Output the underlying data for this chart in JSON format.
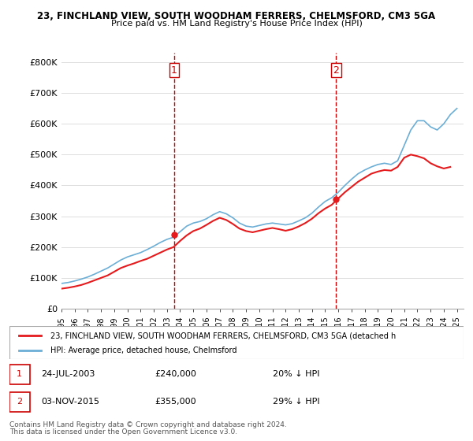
{
  "title1": "23, FINCHLAND VIEW, SOUTH WOODHAM FERRERS, CHELMSFORD, CM3 5GA",
  "title2": "Price paid vs. HM Land Registry's House Price Index (HPI)",
  "ylabel": "",
  "xlim_start": 1995.0,
  "xlim_end": 2025.5,
  "ylim_min": 0,
  "ylim_max": 830000,
  "yticks": [
    0,
    100000,
    200000,
    300000,
    400000,
    500000,
    600000,
    700000,
    800000
  ],
  "ytick_labels": [
    "£0",
    "£100K",
    "£200K",
    "£300K",
    "£400K",
    "£500K",
    "£600K",
    "£700K",
    "£800K"
  ],
  "xticks": [
    1995,
    1996,
    1997,
    1998,
    1999,
    2000,
    2001,
    2002,
    2003,
    2004,
    2005,
    2006,
    2007,
    2008,
    2009,
    2010,
    2011,
    2012,
    2013,
    2014,
    2015,
    2016,
    2017,
    2018,
    2019,
    2020,
    2021,
    2022,
    2023,
    2024,
    2025
  ],
  "hpi_color": "#6baed6",
  "price_color": "#e41a1c",
  "vline_color": "#cc0000",
  "vline1_x": 2003.55,
  "vline2_x": 2015.84,
  "sale1_label": "1",
  "sale2_label": "2",
  "sale1_date": "24-JUL-2003",
  "sale1_price": "£240,000",
  "sale1_pct": "20% ↓ HPI",
  "sale2_date": "03-NOV-2015",
  "sale2_price": "£355,000",
  "sale2_pct": "29% ↓ HPI",
  "legend_line1": "23, FINCHLAND VIEW, SOUTH WOODHAM FERRERS, CHELMSFORD, CM3 5GA (detached h",
  "legend_line2": "HPI: Average price, detached house, Chelmsford",
  "footer1": "Contains HM Land Registry data © Crown copyright and database right 2024.",
  "footer2": "This data is licensed under the Open Government Licence v3.0.",
  "hpi_x": [
    1995,
    1995.5,
    1996,
    1996.5,
    1997,
    1997.5,
    1998,
    1998.5,
    1999,
    1999.5,
    2000,
    2000.5,
    2001,
    2001.5,
    2002,
    2002.5,
    2003,
    2003.5,
    2004,
    2004.5,
    2005,
    2005.5,
    2006,
    2006.5,
    2007,
    2007.5,
    2008,
    2008.5,
    2009,
    2009.5,
    2010,
    2010.5,
    2011,
    2011.5,
    2012,
    2012.5,
    2013,
    2013.5,
    2014,
    2014.5,
    2015,
    2015.5,
    2016,
    2016.5,
    2017,
    2017.5,
    2018,
    2018.5,
    2019,
    2019.5,
    2020,
    2020.5,
    2021,
    2021.5,
    2022,
    2022.5,
    2023,
    2023.5,
    2024,
    2024.5,
    2025
  ],
  "hpi_y": [
    82000,
    85000,
    90000,
    96000,
    103000,
    112000,
    122000,
    132000,
    145000,
    158000,
    168000,
    175000,
    182000,
    192000,
    203000,
    215000,
    225000,
    232000,
    250000,
    268000,
    278000,
    283000,
    292000,
    305000,
    315000,
    308000,
    295000,
    278000,
    268000,
    265000,
    270000,
    275000,
    278000,
    275000,
    272000,
    276000,
    285000,
    295000,
    310000,
    330000,
    348000,
    360000,
    378000,
    400000,
    420000,
    438000,
    450000,
    460000,
    468000,
    472000,
    468000,
    480000,
    530000,
    580000,
    610000,
    610000,
    590000,
    580000,
    600000,
    630000,
    650000
  ],
  "price_x": [
    1995,
    1995.5,
    1996,
    1996.5,
    1997,
    1997.5,
    1998,
    1998.5,
    1999,
    1999.5,
    2000,
    2000.5,
    2001,
    2001.5,
    2002,
    2002.5,
    2003,
    2003.5,
    2004,
    2004.5,
    2005,
    2005.5,
    2006,
    2006.5,
    2007,
    2007.5,
    2008,
    2008.5,
    2009,
    2009.5,
    2010,
    2010.5,
    2011,
    2011.5,
    2012,
    2012.5,
    2013,
    2013.5,
    2014,
    2014.5,
    2015,
    2015.5,
    2016,
    2016.5,
    2017,
    2017.5,
    2018,
    2018.5,
    2019,
    2019.5,
    2020,
    2020.5,
    2021,
    2021.5,
    2022,
    2022.5,
    2023,
    2023.5,
    2024,
    2024.5
  ],
  "price_y": [
    65000,
    68000,
    72000,
    77000,
    84000,
    92000,
    100000,
    108000,
    120000,
    132000,
    140000,
    147000,
    155000,
    162000,
    172000,
    182000,
    192000,
    200000,
    220000,
    238000,
    252000,
    260000,
    272000,
    285000,
    295000,
    288000,
    275000,
    260000,
    252000,
    248000,
    253000,
    258000,
    262000,
    258000,
    253000,
    258000,
    267000,
    278000,
    292000,
    310000,
    325000,
    337000,
    358000,
    378000,
    395000,
    412000,
    425000,
    438000,
    445000,
    450000,
    448000,
    460000,
    490000,
    500000,
    495000,
    488000,
    472000,
    462000,
    455000,
    460000
  ]
}
